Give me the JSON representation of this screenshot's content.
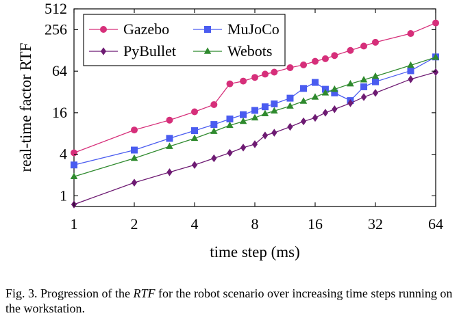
{
  "chart_data": {
    "type": "line",
    "xlabel": "time step (ms)",
    "ylabel": "real-time factor RTF",
    "x_scale": "log2",
    "y_scale": "log2",
    "xlim": [
      1,
      64
    ],
    "ylim": [
      0.7,
      512
    ],
    "x_ticks": [
      1,
      2,
      4,
      8,
      16,
      32,
      64
    ],
    "x_tick_labels": [
      "1",
      "2",
      "4",
      "8",
      "16",
      "32",
      "64"
    ],
    "y_ticks": [
      1,
      4,
      16,
      64,
      256,
      512
    ],
    "y_tick_labels": [
      "1",
      "4",
      "16",
      "64",
      "256",
      "512"
    ],
    "grid": false,
    "legend_position": "top-left",
    "series": [
      {
        "name": "Gazebo",
        "color": "#d62f7a",
        "marker": "circle",
        "points": [
          [
            1,
            4.2
          ],
          [
            2,
            9
          ],
          [
            3,
            12.5
          ],
          [
            4,
            16.5
          ],
          [
            5,
            21
          ],
          [
            6,
            42
          ],
          [
            7,
            46
          ],
          [
            8,
            52
          ],
          [
            9,
            58
          ],
          [
            10,
            62
          ],
          [
            12,
            72
          ],
          [
            14,
            79
          ],
          [
            16,
            89
          ],
          [
            18,
            97
          ],
          [
            20,
            108
          ],
          [
            24,
            128
          ],
          [
            28,
            148
          ],
          [
            32,
            168
          ],
          [
            48,
            225
          ],
          [
            64,
            320
          ]
        ]
      },
      {
        "name": "MuJoCo",
        "color": "#4a5cf0",
        "marker": "square",
        "points": [
          [
            1,
            2.8
          ],
          [
            2,
            4.6
          ],
          [
            3,
            6.8
          ],
          [
            4,
            8.8
          ],
          [
            5,
            10.8
          ],
          [
            6,
            13
          ],
          [
            7,
            15
          ],
          [
            8,
            17.3
          ],
          [
            9,
            19.5
          ],
          [
            10,
            21.5
          ],
          [
            12,
            26
          ],
          [
            14,
            36
          ],
          [
            16,
            44
          ],
          [
            18,
            35
          ],
          [
            20,
            31
          ],
          [
            24,
            24
          ],
          [
            28,
            38
          ],
          [
            32,
            45
          ],
          [
            48,
            65
          ],
          [
            64,
            103
          ]
        ]
      },
      {
        "name": "PyBullet",
        "color": "#6e1b73",
        "marker": "diamond",
        "points": [
          [
            1,
            0.75
          ],
          [
            2,
            1.55
          ],
          [
            3,
            2.2
          ],
          [
            4,
            2.8
          ],
          [
            5,
            3.5
          ],
          [
            6,
            4.2
          ],
          [
            7,
            5
          ],
          [
            8,
            5.6
          ],
          [
            9,
            7.5
          ],
          [
            10,
            8.2
          ],
          [
            12,
            10
          ],
          [
            14,
            12
          ],
          [
            16,
            13.5
          ],
          [
            18,
            16
          ],
          [
            20,
            18
          ],
          [
            24,
            22
          ],
          [
            28,
            27
          ],
          [
            32,
            31
          ],
          [
            48,
            49
          ],
          [
            64,
            62
          ]
        ]
      },
      {
        "name": "Webots",
        "color": "#2f8a2e",
        "marker": "triangle",
        "points": [
          [
            1,
            1.9
          ],
          [
            2,
            3.5
          ],
          [
            3,
            5.2
          ],
          [
            4,
            6.8
          ],
          [
            5,
            8.6
          ],
          [
            6,
            10.5
          ],
          [
            7,
            12
          ],
          [
            8,
            13.5
          ],
          [
            9,
            15.5
          ],
          [
            10,
            17
          ],
          [
            12,
            20
          ],
          [
            14,
            23.5
          ],
          [
            16,
            27
          ],
          [
            18,
            31
          ],
          [
            20,
            35
          ],
          [
            24,
            42
          ],
          [
            28,
            48
          ],
          [
            32,
            54
          ],
          [
            48,
            78
          ],
          [
            64,
            102
          ]
        ]
      }
    ]
  },
  "caption": {
    "prefix": "Fig. 3.  Progression of the ",
    "rtf": "RTF",
    "suffix": " for the robot scenario over increasing time steps running on the workstation."
  }
}
